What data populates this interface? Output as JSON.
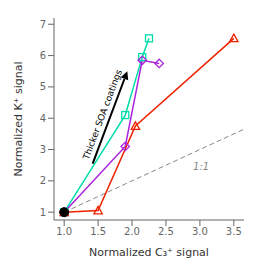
{
  "chart_data": {
    "type": "line",
    "title": "",
    "xlabel": "Normalized C₃⁺ signal",
    "ylabel": "Normalized K⁺ signal",
    "xlim": [
      0.85,
      3.65
    ],
    "ylim": [
      0.75,
      7.2
    ],
    "xticks": [
      {
        "value": 1.0,
        "label": "1.0"
      },
      1.5,
      {
        "value": 2.0,
        "label": "2.0"
      },
      2.5,
      {
        "value": 3.0,
        "label": "3.0"
      },
      3.5
    ],
    "yticks": [
      1,
      2,
      3,
      4,
      5,
      6,
      7
    ],
    "grid": false,
    "series": [
      {
        "color": "#00ddaa",
        "marker": "square",
        "x": [
          1.0,
          1.9,
          2.15,
          2.25
        ],
        "values": [
          1.0,
          4.1,
          5.95,
          6.55
        ]
      },
      {
        "color": "#aa22dd",
        "marker": "diamond",
        "x": [
          1.0,
          1.9,
          2.15,
          2.4
        ],
        "values": [
          1.0,
          3.1,
          5.85,
          5.75
        ]
      },
      {
        "color": "#ee2200",
        "marker": "triangle",
        "x": [
          1.0,
          1.5,
          2.05,
          3.5
        ],
        "values": [
          1.0,
          1.05,
          3.75,
          6.55
        ]
      }
    ],
    "reference_line": {
      "x": [
        1.0,
        3.65
      ],
      "y": [
        1.0,
        3.65
      ],
      "color": "#888888",
      "line_style": "dashed",
      "label": "1:1",
      "label_x": 2.9,
      "label_y": 2.35
    },
    "highlight_point": {
      "x": 1.0,
      "y": 1.0,
      "color": "black"
    },
    "arrow": {
      "x_start": 1.42,
      "y_start": 2.55,
      "x_end": 1.93,
      "y_end": 5.5,
      "label": "Thicker SOA coatings",
      "color": "black"
    }
  }
}
